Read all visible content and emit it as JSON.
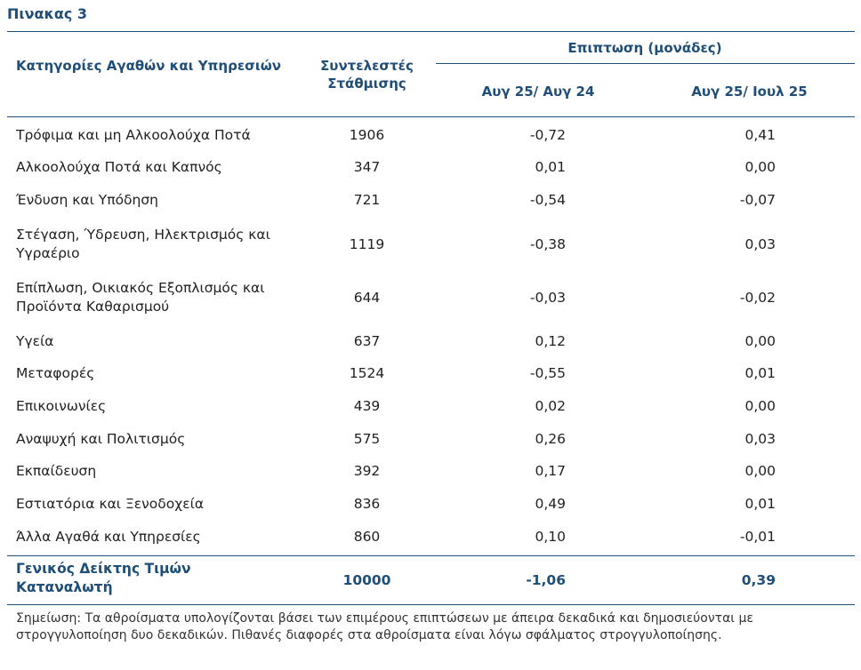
{
  "title": "Πινακας 3",
  "headers": {
    "category": "Κατηγορίες Αγαθών και Υπηρεσιών",
    "weights": "Συντελεστές Στάθμισης",
    "impact": "Επιπτωση (μονάδες)",
    "yoy": "Αυγ 25/ Αυγ 24",
    "mom": "Αυγ 25/ Ιουλ 25"
  },
  "rows": [
    {
      "cat": "Τρόφιμα και μη Αλκοολούχα Ποτά",
      "w": "1906",
      "a": "-0,72",
      "b": "0,41"
    },
    {
      "cat": "Αλκοολούχα Ποτά και Καπνός",
      "w": "347",
      "a": "0,01",
      "b": "0,00"
    },
    {
      "cat": "Ένδυση και Υπόδηση",
      "w": "721",
      "a": "-0,54",
      "b": "-0,07"
    },
    {
      "cat": "Στέγαση, Ύδρευση, Ηλεκτρισμός και Υγραέριο",
      "w": "1119",
      "a": "-0,38",
      "b": "0,03"
    },
    {
      "cat": "Επίπλωση, Οικιακός Εξοπλισμός και Προϊόντα Καθαρισμού",
      "w": "644",
      "a": "-0,03",
      "b": "-0,02"
    },
    {
      "cat": "Υγεία",
      "w": "637",
      "a": "0,12",
      "b": "0,00"
    },
    {
      "cat": "Μεταφορές",
      "w": "1524",
      "a": "-0,55",
      "b": "0,01"
    },
    {
      "cat": "Επικοινωνίες",
      "w": "439",
      "a": "0,02",
      "b": "0,00"
    },
    {
      "cat": "Αναψυχή και Πολιτισμός",
      "w": "575",
      "a": "0,26",
      "b": "0,03"
    },
    {
      "cat": "Εκπαίδευση",
      "w": "392",
      "a": "0,17",
      "b": "0,00"
    },
    {
      "cat": "Εστιατόρια και Ξενοδοχεία",
      "w": "836",
      "a": "0,49",
      "b": "0,01"
    },
    {
      "cat": "Άλλα Αγαθά και Υπηρεσίες",
      "w": "860",
      "a": "0,10",
      "b": "-0,01"
    }
  ],
  "total": {
    "cat": "Γενικός Δείκτης Τιμών Καταναλωτή",
    "w": "10000",
    "a": "-1,06",
    "b": "0,39"
  },
  "note": "Σημείωση: Τα αθροίσματα υπολογίζονται βάσει των επιμέρους επιπτώσεων με άπειρα δεκαδικά και δημοσιεύονται με στρογγυλοποίηση δυο δεκαδικών. Πιθανές διαφορές στα αθροίσματα είναι λόγω σφάλματος στρογγυλοποίησης.",
  "colors": {
    "accent": "#1f4e79"
  }
}
